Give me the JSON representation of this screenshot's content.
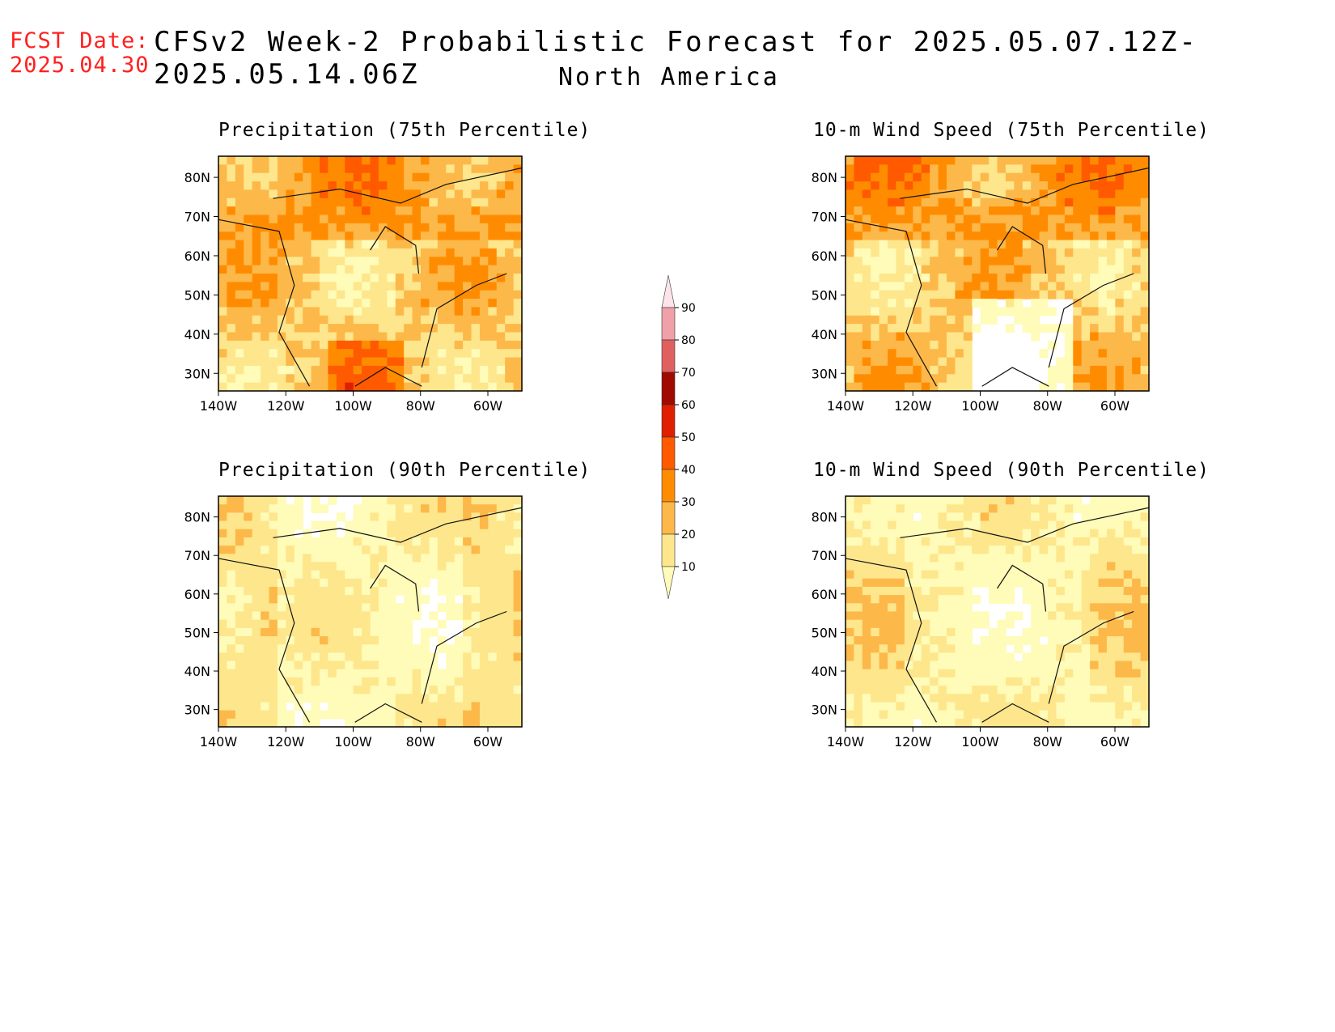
{
  "header": {
    "fcst_line1": "FCST Date:",
    "fcst_line2": "2025.04.30",
    "title": "CFSv2 Week-2 Probabilistic Forecast for 2025.05.07.12Z-2025.05.14.06Z",
    "subtitle": "North America"
  },
  "panels": [
    {
      "title": "Precipitation (75th Percentile)",
      "intensity": "high",
      "variable": "precip"
    },
    {
      "title": "10-m Wind Speed (75th Percentile)",
      "intensity": "high",
      "variable": "wind"
    },
    {
      "title": "Precipitation (90th Percentile)",
      "intensity": "low",
      "variable": "precip"
    },
    {
      "title": "10-m Wind Speed (90th Percentile)",
      "intensity": "low",
      "variable": "wind"
    }
  ],
  "axes": {
    "lat_labels": [
      "80N",
      "70N",
      "60N",
      "50N",
      "40N",
      "30N"
    ],
    "lon_labels": [
      "140W",
      "120W",
      "100W",
      "80W",
      "60W"
    ]
  },
  "legend": {
    "levels": [
      "10",
      "20",
      "30",
      "40",
      "50",
      "60",
      "70",
      "80",
      "90"
    ],
    "colors": [
      "#fffbb8",
      "#fde68c",
      "#fdb84a",
      "#ff8c00",
      "#ff5a00",
      "#e01e00",
      "#a00a00",
      "#e06060",
      "#f0a0a8",
      "#fde4ea"
    ]
  }
}
